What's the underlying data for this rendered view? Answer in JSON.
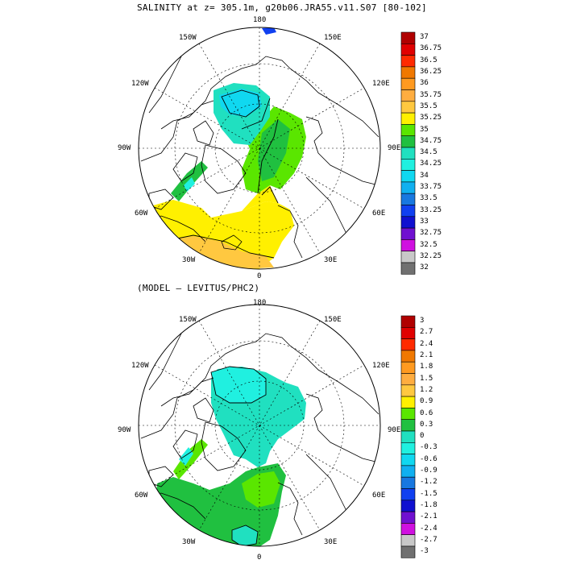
{
  "panel1": {
    "title": "SALINITY at z= 305.1m, g20b06.JRA55.v11.S07 [80-102]",
    "lon_labels": {
      "n": "180",
      "s": "0",
      "e": "90E",
      "w": "90W",
      "ne1": "150E",
      "ne2": "120E",
      "se1": "60E",
      "se2": "30E",
      "nw1": "150W",
      "nw2": "120W",
      "sw1": "60W",
      "sw2": "30W"
    },
    "colorbar": {
      "labels": [
        "37",
        "36.75",
        "36.5",
        "36.25",
        "36",
        "35.75",
        "35.5",
        "35.25",
        "35",
        "34.75",
        "34.5",
        "34.25",
        "34",
        "33.75",
        "33.5",
        "33.25",
        "33",
        "32.75",
        "32.5",
        "32.25",
        "32"
      ],
      "colors": [
        "#b00000",
        "#e00000",
        "#ff2a00",
        "#f07800",
        "#ff9a20",
        "#ffad40",
        "#ffc840",
        "#fff000",
        "#5ae600",
        "#20c040",
        "#20e0c0",
        "#20f0e0",
        "#10d8f0",
        "#10b0f0",
        "#1878e0",
        "#1040f0",
        "#1010d0",
        "#7010d0",
        "#d010e0",
        "#c8c8c8",
        "#707070"
      ]
    }
  },
  "panel2": {
    "title": "(MODEL – LEVITUS/PHC2)",
    "lon_labels": {
      "n": "180",
      "s": "0",
      "e": "90E",
      "w": "90W",
      "ne1": "150E",
      "ne2": "120E",
      "se1": "60E",
      "se2": "30E",
      "nw1": "150W",
      "nw2": "120W",
      "sw1": "60W",
      "sw2": "30W"
    },
    "colorbar": {
      "labels": [
        "3",
        "2.7",
        "2.4",
        "2.1",
        "1.8",
        "1.5",
        "1.2",
        "0.9",
        "0.6",
        "0.3",
        "0",
        "-0.3",
        "-0.6",
        "-0.9",
        "-1.2",
        "-1.5",
        "-1.8",
        "-2.1",
        "-2.4",
        "-2.7",
        "-3"
      ],
      "colors": [
        "#b00000",
        "#e00000",
        "#ff2a00",
        "#f07800",
        "#ff9a20",
        "#ffad40",
        "#ffc840",
        "#fff000",
        "#5ae600",
        "#20c040",
        "#20e0c0",
        "#20f0e0",
        "#10d8f0",
        "#10b0f0",
        "#1878e0",
        "#1040f0",
        "#1010d0",
        "#7010d0",
        "#d010e0",
        "#c8c8c8",
        "#707070"
      ]
    }
  }
}
